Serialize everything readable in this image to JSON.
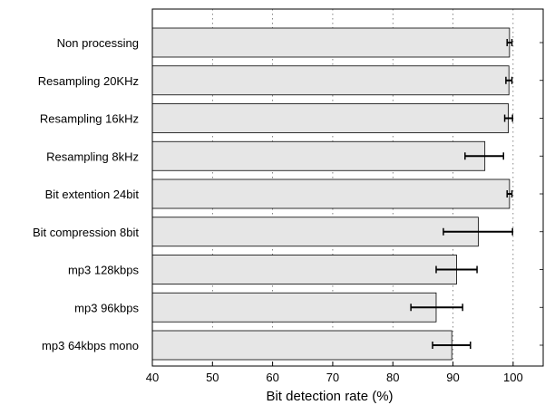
{
  "chart_data": {
    "type": "bar",
    "orientation": "horizontal",
    "title": "",
    "xlabel": "Bit detection rate (%)",
    "ylabel": "",
    "xlim": [
      40,
      105
    ],
    "xticks": [
      40,
      50,
      60,
      70,
      80,
      90,
      100
    ],
    "grid": "vertical dotted",
    "bar_color": "#e6e6e6",
    "categories": [
      "Non processing",
      "Resampling 20KHz",
      "Resampling 16kHz",
      "Resampling 8kHz",
      "Bit extention 24bit",
      "Bit compression 8bit",
      "mp3 128kbps",
      "mp3 96kbps",
      "mp3 64kbps mono"
    ],
    "values": [
      99.4,
      99.3,
      99.2,
      95.3,
      99.4,
      94.2,
      90.6,
      87.2,
      89.8
    ],
    "error_low": [
      99.0,
      98.8,
      98.6,
      92.0,
      99.0,
      88.4,
      87.2,
      83.0,
      86.6
    ],
    "error_high": [
      99.8,
      99.8,
      99.9,
      98.4,
      99.8,
      99.9,
      94.0,
      91.6,
      92.9
    ]
  }
}
